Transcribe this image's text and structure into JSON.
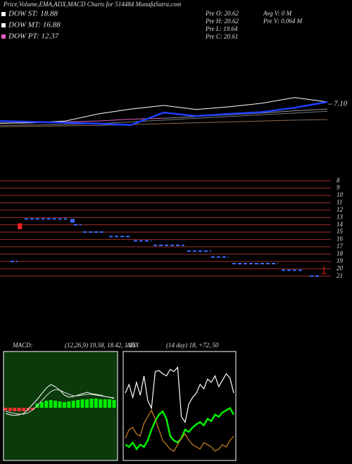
{
  "chart_data": [
    {
      "type": "line",
      "title": "Price,Volume,EMA,ADX,MACD Charts for 514484  MunafaSutra.com",
      "annotations": [
        "DOW ST: 18.88",
        "DOW MT: 16.88",
        "DOW PT: 12.37",
        "Pre  O: 20.62",
        "Pre  H: 20.62",
        "Pre  L: 19.64",
        "Pre  C: 20.61",
        "Avg V: 0  M",
        "Pre  V: 0.064  M"
      ],
      "x": [
        0,
        10,
        20,
        30,
        40,
        50,
        60,
        70,
        80,
        90,
        100
      ],
      "xlim": [
        0,
        100
      ],
      "ylim": [
        5.8,
        8.5
      ],
      "yticks": [
        {
          "value": 7.1,
          "label": "7.10"
        }
      ],
      "series": [
        {
          "color": "#8a6a50",
          "values": [
            6.59,
            6.6,
            6.61,
            6.62,
            6.64,
            6.66,
            6.68,
            6.7,
            6.72,
            6.74,
            6.75
          ]
        },
        {
          "color": "#777777",
          "values": [
            6.62,
            6.63,
            6.64,
            6.66,
            6.7,
            6.74,
            6.78,
            6.82,
            6.86,
            6.9,
            6.94
          ]
        },
        {
          "color": "#999999",
          "values": [
            null,
            null,
            null,
            null,
            null,
            6.78,
            6.82,
            6.86,
            6.9,
            6.95,
            6.99
          ]
        },
        {
          "color": "#e060c0",
          "values": [
            6.67,
            6.68,
            6.7,
            6.72,
            6.76,
            6.78,
            null,
            null,
            null,
            null,
            null
          ]
        },
        {
          "color": "#ffffff",
          "values": [
            6.67,
            6.68,
            6.72,
            6.88,
            6.99,
            7.07,
            6.98,
            7.04,
            7.12,
            7.25,
            7.15
          ]
        },
        {
          "color": "#1f3fff",
          "values": [
            6.72,
            6.7,
            6.68,
            6.66,
            6.63,
            6.91,
            6.83,
            6.88,
            6.92,
            7.02,
            7.15
          ]
        }
      ]
    },
    {
      "type": "step",
      "xlim": [
        0,
        100
      ],
      "ylim": [
        7.5,
        21.7
      ],
      "yticks": [
        21,
        20,
        19,
        18,
        17,
        16,
        15,
        14,
        13,
        12,
        11,
        10,
        9,
        8
      ],
      "x_start": [
        3.2,
        7.4,
        22.3,
        25.1,
        33,
        40.4,
        46.4,
        56.6,
        63.8,
        70.2,
        85.1,
        93.6
      ],
      "x_end": [
        5.3,
        20.2,
        24.5,
        31.9,
        39.4,
        45.7,
        55.7,
        63.8,
        69.1,
        84,
        91.5,
        96.8
      ],
      "values": [
        19,
        13.2,
        14,
        15,
        15.6,
        16.2,
        16.8,
        17.6,
        18.4,
        19.3,
        20.2,
        21
      ],
      "color": "#3a6cff",
      "grid_color": "#a0302a",
      "candles": [
        {
          "x": 6,
          "open": 13.8,
          "close": 14.6,
          "high": 14.6,
          "low": 13.8,
          "color": "#ff2020"
        },
        {
          "x": 21.9,
          "open": 13.2,
          "close": 13.7,
          "high": 13.7,
          "low": 13.2,
          "color": "#3a6cff"
        },
        {
          "x": 97.9,
          "open": 20.62,
          "close": 20.61,
          "high": 20.62,
          "low": 19.64,
          "color": "#ff2020"
        }
      ]
    },
    {
      "type": "macd",
      "title": "MACD:",
      "subtitle": "(12,26,9) 19.58,  18.42,  1.16",
      "ylim": [
        -7.5,
        8
      ],
      "positive_color": "#00ee00",
      "negative_color": "#ff3030",
      "histogram": [
        -0.4,
        -0.5,
        -0.5,
        -0.5,
        -0.5,
        -0.4,
        -0.3,
        0.6,
        0.8,
        1.0,
        1.1,
        1.0,
        0.9,
        0.8,
        0.9,
        1.0,
        1.1,
        1.2,
        1.2,
        1.3,
        1.3,
        1.2,
        1.2,
        1.2,
        1.1
      ],
      "series": [
        {
          "color": "#ffffff",
          "values": [
            -0.8,
            -1.0,
            -1.1,
            -1.0,
            -0.8,
            -0.2,
            0.5,
            1.2,
            2.0,
            2.8,
            3.3,
            3.0,
            2.5,
            1.8,
            1.5,
            1.6,
            1.8,
            2.0,
            2.2,
            2.0,
            1.9,
            1.8,
            1.6,
            1.5,
            1.3
          ]
        },
        {
          "color": "#dddddd",
          "values": [
            -0.5,
            -0.7,
            -0.8,
            -0.9,
            -0.9,
            -0.7,
            -0.3,
            0.3,
            1.0,
            1.7,
            2.3,
            2.6,
            2.5,
            2.2,
            1.9,
            1.7,
            1.7,
            1.8,
            1.9,
            1.9,
            1.8,
            1.7,
            1.6,
            1.5,
            1.4
          ]
        }
      ]
    },
    {
      "type": "adx",
      "title": "ADX",
      "subtitle": "(14 day) 18,  +72,  50",
      "ylim": [
        0,
        100
      ],
      "series": [
        {
          "color": "#ffffff",
          "values": [
            62,
            70,
            58,
            72,
            60,
            78,
            55,
            48,
            82,
            83,
            80,
            78,
            84,
            82,
            86,
            40,
            35,
            52,
            58,
            62,
            70,
            66,
            75,
            72,
            78,
            68,
            74,
            80,
            76,
            62
          ]
        },
        {
          "color": "#00ee00",
          "values": [
            14,
            12,
            16,
            10,
            14,
            12,
            18,
            28,
            36,
            42,
            45,
            38,
            22,
            18,
            16,
            20,
            28,
            26,
            30,
            33,
            35,
            32,
            38,
            36,
            42,
            40,
            44,
            46,
            48,
            42
          ]
        },
        {
          "color": "#d08020",
          "values": [
            20,
            28,
            30,
            24,
            22,
            34,
            40,
            46,
            38,
            28,
            18,
            14,
            10,
            8,
            14,
            20,
            24,
            18,
            14,
            12,
            10,
            16,
            14,
            12,
            8,
            10,
            14,
            12,
            18,
            22
          ]
        }
      ]
    }
  ]
}
